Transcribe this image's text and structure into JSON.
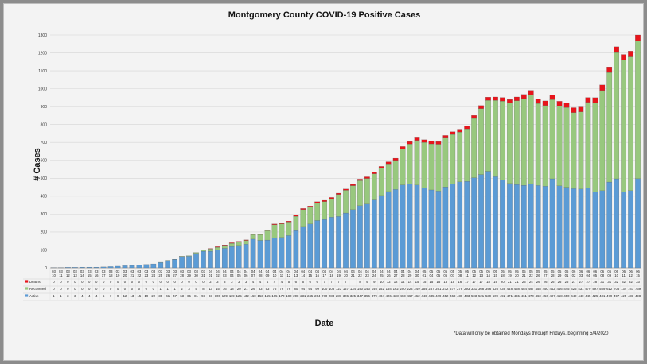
{
  "chart_data": {
    "type": "bar",
    "stacked": true,
    "title": "Montgomery County COVID-19 Positive Cases",
    "xlabel": "Date",
    "ylabel": "# Cases",
    "ylim": [
      0,
      1300
    ],
    "y_ticks": [
      0,
      100,
      200,
      300,
      400,
      500,
      600,
      700,
      800,
      900,
      1000,
      1100,
      1200,
      1300
    ],
    "grid": true,
    "note": "*Data will only be obtained Mondays through Fridays, beginning 5/4/2020",
    "categories": [
      "03 10",
      "03 11",
      "03 12",
      "03 13",
      "03 14",
      "03 15",
      "03 16",
      "03 17",
      "03 18",
      "03 19",
      "03 20",
      "03 21",
      "03 22",
      "03 23",
      "03 24",
      "03 25",
      "03 26",
      "03 27",
      "03 28",
      "03 29",
      "03 30",
      "03 31",
      "04 01",
      "04 02",
      "04 03",
      "04 04",
      "04 05",
      "04 06",
      "04 07",
      "04 08",
      "04 09",
      "04 10",
      "04 11",
      "04 12",
      "04 13",
      "04 14",
      "04 15",
      "04 16",
      "04 17",
      "04 18",
      "04 19",
      "04 20",
      "04 21",
      "04 22",
      "04 23",
      "04 24",
      "04 25",
      "04 26",
      "04 27",
      "04 28",
      "04 29",
      "04 30",
      "05 01",
      "05 04",
      "05 05",
      "05 06",
      "05 07",
      "05 08",
      "05 11",
      "05 12",
      "05 13",
      "05 14",
      "05 15",
      "05 18",
      "05 19",
      "05 20",
      "05 21",
      "05 22",
      "05 26",
      "05 27",
      "05 28",
      "05 29",
      "06 01",
      "06 02",
      "06 03",
      "06 04",
      "06 05",
      "06 08",
      "06 09",
      "06 10",
      "06 11",
      "06 12",
      "06 15"
    ],
    "series": [
      {
        "name": "Deaths",
        "color": "#e8141b",
        "values": [
          0,
          0,
          0,
          0,
          0,
          0,
          0,
          0,
          0,
          0,
          0,
          0,
          0,
          0,
          0,
          0,
          0,
          0,
          0,
          0,
          0,
          0,
          2,
          3,
          3,
          3,
          3,
          3,
          4,
          4,
          4,
          4,
          4,
          5,
          6,
          6,
          6,
          6,
          7,
          7,
          7,
          7,
          7,
          8,
          9,
          9,
          10,
          12,
          12,
          14,
          14,
          15,
          15,
          15,
          15,
          15,
          15,
          16,
          17,
          17,
          17,
          18,
          19,
          20,
          21,
          21,
          23,
          24,
          26,
          26,
          26,
          26,
          26,
          27,
          27,
          27,
          28,
          31,
          31,
          32,
          32,
          32,
          33
        ]
      },
      {
        "name": "Recovered",
        "color": "#98c87e",
        "values": [
          0,
          0,
          0,
          0,
          0,
          0,
          0,
          0,
          0,
          0,
          0,
          0,
          0,
          0,
          0,
          1,
          1,
          1,
          2,
          3,
          5,
          8,
          13,
          15,
          16,
          18,
          20,
          21,
          26,
          33,
          53,
          76,
          76,
          76,
          80,
          94,
          94,
          99,
          100,
          103,
          123,
          127,
          134,
          140,
          143,
          146,
          152,
          154,
          162,
          200,
          224,
          249,
          254,
          257,
          261,
          272,
          277,
          278,
          293,
          331,
          368,
          396,
          426,
          439,
          448,
          468,
          484,
          497,
          458,
          450,
          442,
          446,
          445,
          425,
          431,
          479,
          497,
          559,
          612,
          705,
          734,
          747,
          769
        ]
      },
      {
        "name": "Active",
        "color": "#5b9bd5",
        "values": [
          1,
          1,
          3,
          3,
          4,
          4,
          4,
          5,
          7,
          9,
          12,
          13,
          15,
          19,
          22,
          30,
          41,
          47,
          63,
          65,
          81,
          93,
          93,
          100,
          109,
          119,
          125,
          132,
          160,
          153,
          155,
          165,
          170,
          180,
          208,
          231,
          245,
          264,
          270,
          283,
          287,
          306,
          325,
          347,
          356,
          379,
          404,
          426,
          438,
          463,
          467,
          462,
          446,
          435,
          429,
          452,
          468,
          480,
          483,
          503,
          521,
          539,
          509,
          492,
          471,
          465,
          461,
          470,
          460,
          456,
          497,
          458,
          450,
          442,
          440,
          445,
          425,
          431,
          479,
          497,
          425,
          431,
          498
        ]
      }
    ],
    "table_rows": [
      "Deaths",
      "Recovered",
      "Active"
    ]
  }
}
